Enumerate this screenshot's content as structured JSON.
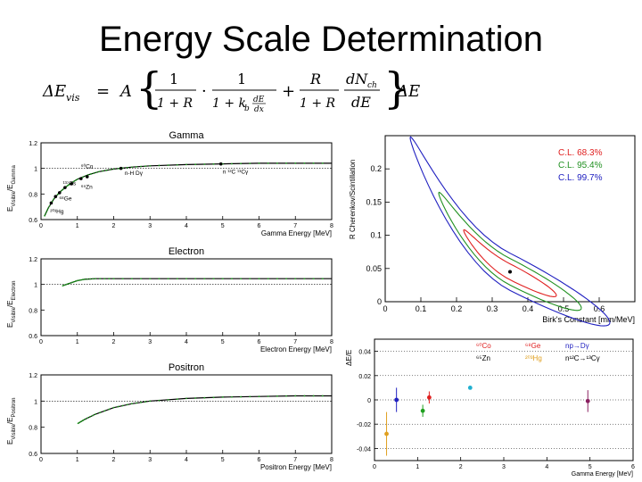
{
  "slide": {
    "title": "Energy Scale Determination",
    "formula": {
      "lhs": "ΔE",
      "lhs_sub": "vis",
      "eq": "=",
      "A": "A",
      "one": "1",
      "one_plus_R": "1 + R",
      "dot": "·",
      "one_plus_kb": "1 + k",
      "kb_sub": "b",
      "dEdx_num": "dE",
      "dEdx_den": "dx",
      "plus": "+",
      "R": "R",
      "dN_num": "dN",
      "dN_sub": "ch",
      "dE_den": "dE",
      "rhs": "ΔE"
    }
  },
  "chart_data": [
    {
      "type": "line",
      "title": "Gamma",
      "xlabel": "Gamma Energy [MeV]",
      "ylabel_main": "E",
      "ylabel_sub1": "Visible",
      "ylabel_mid": "/E",
      "ylabel_sub2": "Gamma",
      "xlim": [
        0,
        8
      ],
      "ylim": [
        0.6,
        1.2
      ],
      "xticks": [
        "0",
        "1",
        "2",
        "3",
        "4",
        "5",
        "6",
        "7",
        "8"
      ],
      "yticks": [
        "0.6",
        "0.8",
        "1",
        "1.2"
      ],
      "curve": {
        "x": [
          0.1,
          0.2,
          0.35,
          0.5,
          0.66,
          0.8,
          1.0,
          1.3,
          1.6,
          2.0,
          2.5,
          3.0,
          4.0,
          5.0,
          6.0,
          7.0,
          8.0
        ],
        "y": [
          0.63,
          0.69,
          0.76,
          0.81,
          0.85,
          0.88,
          0.915,
          0.95,
          0.975,
          0.995,
          1.01,
          1.02,
          1.03,
          1.035,
          1.04,
          1.04,
          1.04
        ]
      },
      "points": {
        "x": [
          0.28,
          0.4,
          0.51,
          0.66,
          0.84,
          1.1,
          1.27,
          2.2,
          4.95
        ],
        "y": [
          0.73,
          0.78,
          0.81,
          0.85,
          0.88,
          0.92,
          0.935,
          1.0,
          1.035
        ]
      },
      "annotations": [
        {
          "text": "⁶⁰Co",
          "x": 1.1,
          "y": 1.0
        },
        {
          "text": "n-H Dγ",
          "x": 2.3,
          "y": 0.95
        },
        {
          "text": "n ¹²C ¹³Cγ",
          "x": 5.0,
          "y": 0.96
        },
        {
          "text": "⁶⁵Zn",
          "x": 1.1,
          "y": 0.84
        },
        {
          "text": "⁶⁸Ge",
          "x": 0.5,
          "y": 0.75
        },
        {
          "text": "²⁰³Hg",
          "x": 0.25,
          "y": 0.65
        },
        {
          "text": "¹³⁷Cs",
          "x": 0.6,
          "y": 0.87
        }
      ]
    },
    {
      "type": "line",
      "title": "Electron",
      "xlabel": "Electron Energy [MeV]",
      "ylabel_main": "E",
      "ylabel_sub1": "Visible",
      "ylabel_mid": "/E",
      "ylabel_sub2": "Electron",
      "xlim": [
        0,
        8
      ],
      "ylim": [
        0.6,
        1.2
      ],
      "xticks": [
        "0",
        "1",
        "2",
        "3",
        "4",
        "5",
        "6",
        "7",
        "8"
      ],
      "yticks": [
        "0.6",
        "0.8",
        "1",
        "1.2"
      ],
      "curve": {
        "x": [
          0.6,
          0.8,
          1.0,
          1.2,
          1.5,
          2.0,
          3.0,
          4.0,
          5.0,
          6.0,
          7.0,
          8.0
        ],
        "y": [
          0.99,
          1.01,
          1.03,
          1.04,
          1.045,
          1.045,
          1.045,
          1.045,
          1.045,
          1.045,
          1.045,
          1.045
        ]
      }
    },
    {
      "type": "line",
      "title": "Positron",
      "xlabel": "Positron Energy [MeV]",
      "ylabel_main": "E",
      "ylabel_sub1": "Visible",
      "ylabel_mid": "/E",
      "ylabel_sub2": "Positron",
      "xlim": [
        0,
        8
      ],
      "ylim": [
        0.6,
        1.2
      ],
      "xticks": [
        "0",
        "1",
        "2",
        "3",
        "4",
        "5",
        "6",
        "7",
        "8"
      ],
      "yticks": [
        "0.6",
        "0.8",
        "1",
        "1.2"
      ],
      "curve": {
        "x": [
          1.02,
          1.2,
          1.5,
          2.0,
          2.5,
          3.0,
          4.0,
          5.0,
          6.0,
          7.0,
          8.0
        ],
        "y": [
          0.83,
          0.86,
          0.9,
          0.95,
          0.98,
          1.0,
          1.02,
          1.03,
          1.035,
          1.04,
          1.04
        ]
      }
    },
    {
      "type": "line",
      "title": "",
      "xlabel": "Birk's Constant [mm/MeV]",
      "ylabel": "R Cherenkov/Scintillation",
      "xlim": [
        0,
        0.7
      ],
      "ylim": [
        0,
        0.25
      ],
      "xticks": [
        "0",
        "0.1",
        "0.2",
        "0.3",
        "0.4",
        "0.5",
        "0.6"
      ],
      "yticks": [
        "0",
        "0.05",
        "0.1",
        "0.15",
        "0.2"
      ],
      "best_fit": {
        "x": 0.35,
        "y": 0.045
      },
      "legend": [
        {
          "text": "C.L. 68.3%",
          "color": "#e02020"
        },
        {
          "text": "C.L. 95.4%",
          "color": "#209020"
        },
        {
          "text": "C.L. 99.7%",
          "color": "#2020c0"
        }
      ],
      "legend_position": "top-right"
    },
    {
      "type": "scatter",
      "title": "",
      "xlabel": "Gamma Energy [MeV]",
      "ylabel": "ΔE/E",
      "xlim": [
        0,
        6
      ],
      "ylim": [
        -0.05,
        0.05
      ],
      "xticks": [
        "0",
        "1",
        "2",
        "3",
        "4",
        "5",
        "6"
      ],
      "yticks": [
        "-0.04",
        "-0.02",
        "0",
        "0.02",
        "0.04"
      ],
      "points": [
        {
          "x": 0.28,
          "y": -0.028,
          "err": 0.018,
          "color": "#e0a020"
        },
        {
          "x": 0.51,
          "y": 0.0,
          "err": 0.01,
          "color": "#2020c0"
        },
        {
          "x": 1.12,
          "y": -0.009,
          "err": 0.005,
          "color": "#20a020"
        },
        {
          "x": 1.27,
          "y": 0.002,
          "err": 0.005,
          "color": "#e02020"
        },
        {
          "x": 2.22,
          "y": 0.01,
          "err": 0.001,
          "color": "#20b0d0"
        },
        {
          "x": 4.95,
          "y": -0.001,
          "err": 0.009,
          "color": "#8a2060"
        }
      ],
      "legend": [
        {
          "text": "⁶⁰Co",
          "color": "#e02020"
        },
        {
          "text": "⁶⁸Ge",
          "color": "#e02020"
        },
        {
          "text": "np→Dγ",
          "color": "#2020c0"
        },
        {
          "text": "⁶⁵Zn",
          "color": "#000000"
        },
        {
          "text": "²⁰³Hg",
          "color": "#e0a020"
        },
        {
          "text": "n¹²C→¹³Cγ",
          "color": "#000000"
        }
      ]
    }
  ],
  "colors": {
    "fit_line": "#000000",
    "data_points": "#20a020",
    "ref_line": "#000000"
  }
}
